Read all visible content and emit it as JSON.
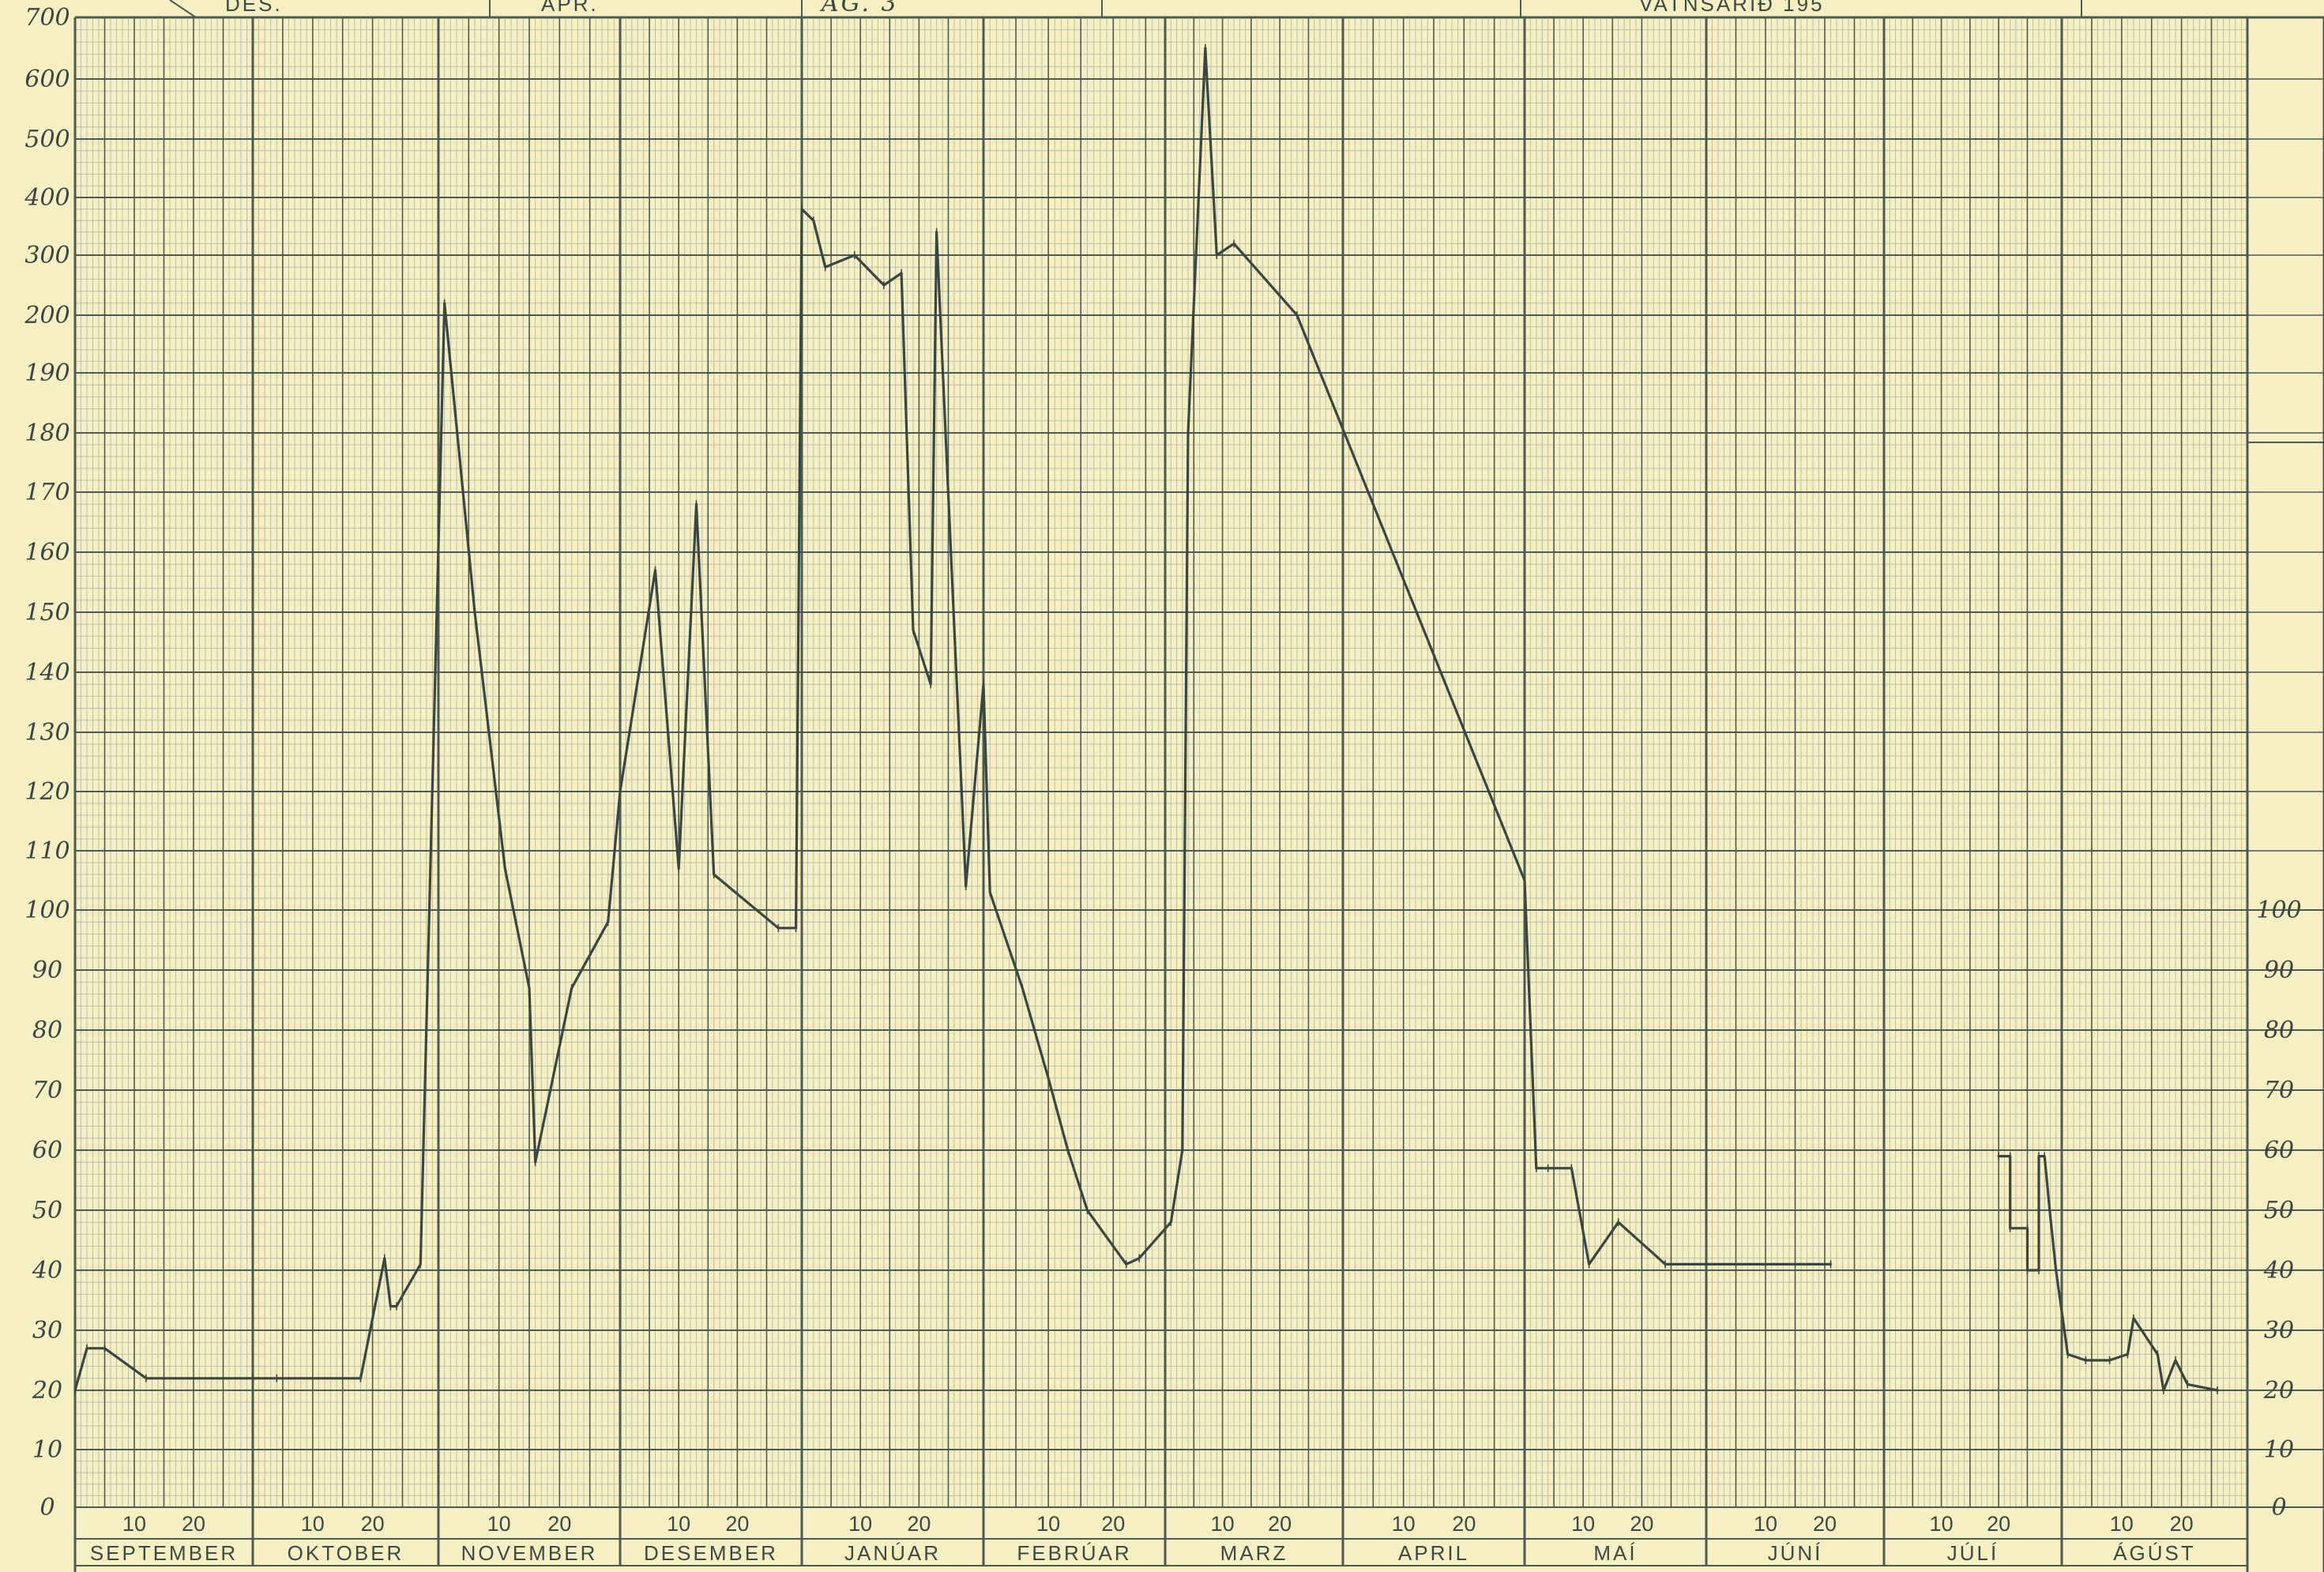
{
  "header": {
    "cells": [
      "DES.",
      "APR.",
      "AG. 3",
      "",
      "VATNSARIÐ  195",
      ""
    ]
  },
  "colors": {
    "paper": "#f7efc4",
    "grid_fine": "#b9bfa8",
    "grid_major": "#4b5a52",
    "ink": "#3a4640"
  },
  "chart_data": {
    "type": "line",
    "title": "VATNSARIÐ  195",
    "xlabel": "",
    "ylabel": "",
    "grid": true,
    "y_scale": "piecewise (0–100 linear, 100–200 linear, 200–700 compressed)",
    "ylim": [
      0,
      700
    ],
    "y_ticks_left": [
      "0",
      "10",
      "20",
      "30",
      "40",
      "50",
      "60",
      "70",
      "80",
      "90",
      "100",
      "110",
      "120",
      "130",
      "140",
      "150",
      "160",
      "170",
      "180",
      "190",
      "200",
      "300",
      "400",
      "500",
      "600",
      "700"
    ],
    "y_ticks_right": [
      "0",
      "10",
      "20",
      "30",
      "40",
      "50",
      "60",
      "70",
      "80",
      "90",
      "100"
    ],
    "months": [
      "SEPTEMBER",
      "OKTOBER",
      "NOVEMBER",
      "DESEMBER",
      "JANÚAR",
      "FEBRÚAR",
      "MARZ",
      "APRIL",
      "MAÍ",
      "JÚNÍ",
      "JÚLÍ",
      "ÁGÚST"
    ],
    "day_ticks": [
      "10",
      "20"
    ],
    "x_unit": "day index from start of September",
    "series": [
      {
        "x": [
          0,
          2,
          5,
          12,
          30,
          34,
          48,
          52,
          53,
          54,
          58,
          62,
          67,
          72,
          76,
          77,
          83,
          89,
          91,
          97,
          101,
          104,
          107,
          118,
          121,
          122,
          124,
          126,
          131,
          136,
          139,
          141,
          144,
          145,
          150,
          153,
          154,
          159,
          163,
          166,
          169,
          175,
          177,
          182,
          184,
          185,
          188,
          190,
          193,
          204,
          242,
          244,
          246,
          250,
          253,
          258,
          266,
          294
        ],
        "y": [
          20,
          27,
          27,
          22,
          22,
          22,
          22,
          42,
          34,
          34,
          41,
          220,
          150,
          107,
          87,
          58,
          87,
          98,
          120,
          157,
          107,
          168,
          106,
          97,
          97,
          380,
          360,
          280,
          300,
          250,
          270,
          147,
          138,
          340,
          104,
          138,
          103,
          87,
          72,
          60,
          50,
          41,
          42,
          48,
          60,
          180,
          650,
          300,
          320,
          200,
          105,
          57,
          57,
          57,
          41,
          48,
          41,
          41
        ]
      },
      {
        "x": [
          323,
          325,
          325,
          328,
          328,
          330,
          330,
          331,
          332,
          333,
          335,
          338,
          342,
          345,
          346,
          350,
          351,
          353,
          355,
          360
        ],
        "y": [
          59,
          59,
          47,
          47,
          40,
          40,
          59,
          59,
          49,
          40,
          26,
          25,
          25,
          26,
          32,
          26,
          20,
          25,
          21,
          20
        ]
      }
    ]
  }
}
